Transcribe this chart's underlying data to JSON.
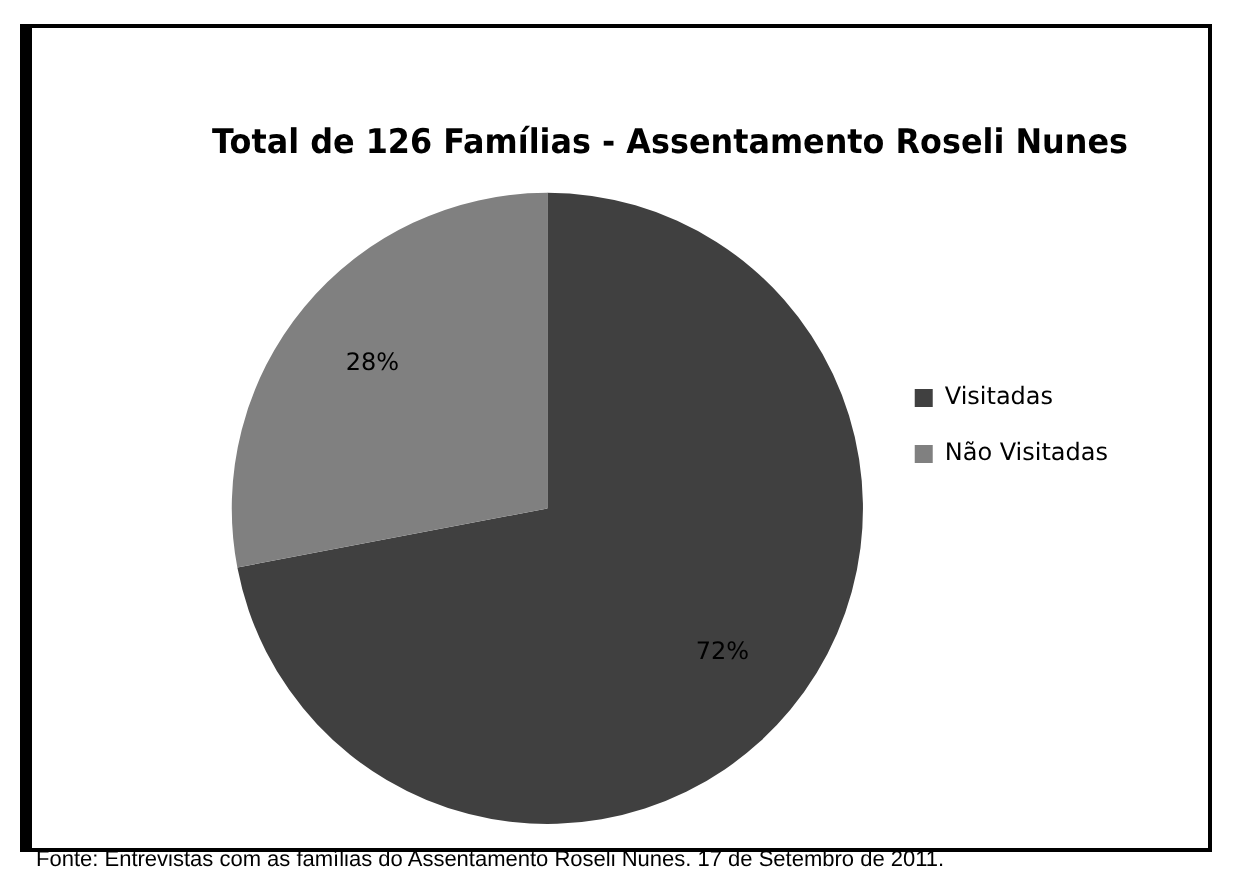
{
  "chart_data": {
    "type": "pie",
    "title": "Total de 126 Famílias - Assentamento Roseli Nunes",
    "categories": [
      "Visitadas",
      "Não Visitadas"
    ],
    "values": [
      72,
      28
    ],
    "colors": [
      "#404040",
      "#808080"
    ],
    "value_labels": [
      "72%",
      "28%"
    ],
    "legend": "right",
    "annotations": [
      "Fonte: Entrevistas com as famílias do Assentamento Roseli Nunes. 17 de Setembro de 2011."
    ]
  }
}
